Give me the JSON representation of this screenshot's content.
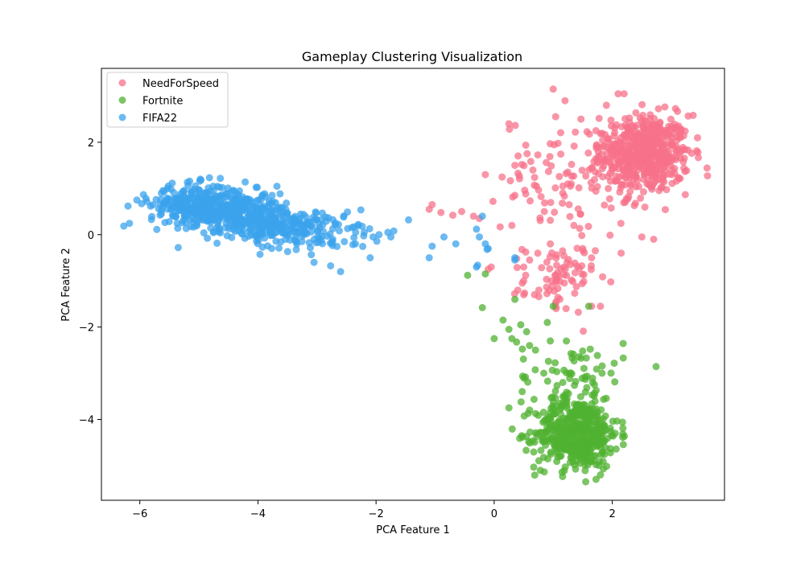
{
  "chart_data": {
    "type": "scatter",
    "title": "Gameplay Clustering Visualization",
    "xlabel": "PCA Feature 1",
    "ylabel": "PCA Feature 2",
    "xlim": [
      -6.65,
      3.9
    ],
    "ylim": [
      -5.75,
      3.6
    ],
    "xticks": [
      -6,
      -4,
      -2,
      0,
      2
    ],
    "yticks": [
      -4,
      -2,
      0,
      2
    ],
    "grid": false,
    "legend_position": "top-left",
    "series": [
      {
        "name": "NeedForSpeed",
        "color": "#f77189",
        "clusters": [
          {
            "center": [
              2.55,
              1.75
            ],
            "spread": [
              0.38,
              0.42
            ],
            "count": 520
          },
          {
            "center": [
              1.35,
              1.3
            ],
            "spread": [
              0.6,
              0.6
            ],
            "count": 110
          },
          {
            "center": [
              1.1,
              -0.95
            ],
            "spread": [
              0.3,
              0.38
            ],
            "count": 75
          }
        ],
        "points": [
          [
            -1.05,
            0.65
          ],
          [
            -1.1,
            0.55
          ],
          [
            -0.9,
            0.48
          ],
          [
            -0.7,
            0.42
          ],
          [
            -0.55,
            0.5
          ],
          [
            -0.35,
            0.4
          ],
          [
            -0.25,
            0.35
          ],
          [
            -0.15,
            1.3
          ],
          [
            -0.05,
            -0.7
          ],
          [
            -0.1,
            -0.75
          ],
          [
            0.25,
            2.4
          ],
          [
            0.35,
            1.5
          ],
          [
            0.35,
            0.85
          ],
          [
            0.3,
            0.2
          ],
          [
            0.5,
            -0.7
          ],
          [
            0.6,
            -0.55
          ],
          [
            1.0,
            3.15
          ],
          [
            1.2,
            2.9
          ],
          [
            1.9,
            2.8
          ],
          [
            2.1,
            3.05
          ],
          [
            2.2,
            3.05
          ],
          [
            3.45,
            1.78
          ],
          [
            1.8,
            -1.55
          ],
          [
            1.65,
            -1.55
          ],
          [
            2.15,
            -0.4
          ],
          [
            2.5,
            -0.05
          ],
          [
            2.7,
            -0.1
          ],
          [
            0.5,
            -1.0
          ],
          [
            0.4,
            -1.2
          ],
          [
            0.5,
            -1.3
          ],
          [
            1.5,
            -0.3
          ],
          [
            1.65,
            -0.5
          ],
          [
            1.35,
            0.2
          ],
          [
            0.85,
            0.5
          ],
          [
            0.95,
            -0.2
          ],
          [
            1.05,
            -1.6
          ]
        ]
      },
      {
        "name": "Fortnite",
        "color": "#50b131",
        "clusters": [
          {
            "center": [
              1.4,
              -4.3
            ],
            "spread": [
              0.35,
              0.38
            ],
            "count": 480
          },
          {
            "center": [
              1.3,
              -3.05
            ],
            "spread": [
              0.45,
              0.45
            ],
            "count": 70
          }
        ],
        "points": [
          [
            -0.45,
            -0.88
          ],
          [
            -0.15,
            -0.85
          ],
          [
            -0.2,
            -1.58
          ],
          [
            0.0,
            -2.25
          ],
          [
            0.15,
            -1.85
          ],
          [
            0.25,
            -2.05
          ],
          [
            0.3,
            -2.25
          ],
          [
            0.35,
            -1.4
          ],
          [
            0.45,
            -1.95
          ],
          [
            0.55,
            -2.1
          ],
          [
            0.6,
            -2.4
          ],
          [
            0.7,
            -2.5
          ],
          [
            0.9,
            -1.9
          ],
          [
            0.95,
            -2.3
          ],
          [
            0.25,
            -3.75
          ],
          [
            1.55,
            -5.35
          ],
          [
            1.8,
            -5.2
          ],
          [
            1.6,
            -1.55
          ],
          [
            1.0,
            -1.55
          ]
        ]
      },
      {
        "name": "FIFA22",
        "color": "#3ba3ec",
        "clusters": [
          {
            "center": [
              -5.05,
              0.65
            ],
            "spread": [
              0.38,
              0.22
            ],
            "count": 290
          },
          {
            "center": [
              -4.25,
              0.45
            ],
            "spread": [
              0.38,
              0.24
            ],
            "count": 260
          },
          {
            "center": [
              -3.55,
              0.15
            ],
            "spread": [
              0.35,
              0.22
            ],
            "count": 140
          },
          {
            "center": [
              -2.8,
              0.05
            ],
            "spread": [
              0.35,
              0.25
            ],
            "count": 55
          }
        ],
        "points": [
          [
            -6.2,
            0.62
          ],
          [
            -6.05,
            0.75
          ],
          [
            -5.35,
            -0.28
          ],
          [
            -2.6,
            -0.8
          ],
          [
            -2.55,
            0.38
          ],
          [
            -2.3,
            0.22
          ],
          [
            -2.2,
            0.05
          ],
          [
            -2.05,
            -0.05
          ],
          [
            -1.95,
            0.0
          ],
          [
            -1.8,
            0.05
          ],
          [
            -1.75,
            -0.05
          ],
          [
            -1.7,
            0.08
          ],
          [
            -1.45,
            0.32
          ],
          [
            -1.1,
            -0.5
          ],
          [
            -1.05,
            -0.25
          ],
          [
            -0.85,
            -0.05
          ],
          [
            -0.65,
            -0.2
          ],
          [
            -0.3,
            0.12
          ],
          [
            -0.25,
            -0.05
          ],
          [
            -0.2,
            0.4
          ],
          [
            -0.15,
            -0.2
          ],
          [
            -0.1,
            -0.3
          ],
          [
            -0.12,
            -0.32
          ],
          [
            -0.3,
            -0.7
          ],
          [
            -0.28,
            -0.66
          ],
          [
            0.35,
            -0.5
          ],
          [
            0.35,
            -0.55
          ],
          [
            -2.1,
            -0.5
          ],
          [
            -2.35,
            -0.2
          ],
          [
            -3.05,
            -0.6
          ]
        ]
      }
    ]
  }
}
